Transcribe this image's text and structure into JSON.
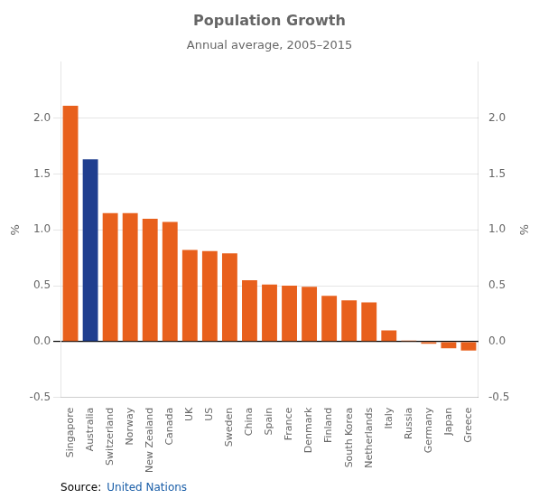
{
  "chart_data": {
    "type": "bar",
    "title": "Population Growth",
    "subtitle": "Annual average, 2005–2015",
    "categories": [
      "Singapore",
      "Australia",
      "Switzerland",
      "Norway",
      "New Zealand",
      "Canada",
      "UK",
      "US",
      "Sweden",
      "China",
      "Spain",
      "France",
      "Denmark",
      "Finland",
      "South Korea",
      "Netherlands",
      "Italy",
      "Russia",
      "Germany",
      "Japan",
      "Greece"
    ],
    "values": [
      2.11,
      1.63,
      1.15,
      1.15,
      1.1,
      1.07,
      0.82,
      0.81,
      0.79,
      0.55,
      0.51,
      0.5,
      0.49,
      0.41,
      0.37,
      0.35,
      0.1,
      0.01,
      -0.02,
      -0.06,
      -0.08
    ],
    "colors": [
      "#E8601C",
      "#1F3E8F",
      "#E8601C",
      "#E8601C",
      "#E8601C",
      "#E8601C",
      "#E8601C",
      "#E8601C",
      "#E8601C",
      "#E8601C",
      "#E8601C",
      "#E8601C",
      "#E8601C",
      "#E8601C",
      "#E8601C",
      "#E8601C",
      "#E8601C",
      "#E8601C",
      "#E8601C",
      "#E8601C",
      "#E8601C"
    ],
    "ylim": [
      -0.5,
      2.5
    ],
    "yticks": [
      {
        "value": -0.5,
        "label": "-0.5"
      },
      {
        "value": 0,
        "label": "0.0"
      },
      0.5,
      {
        "value": 1,
        "label": "1.0"
      },
      1.5,
      {
        "value": 2,
        "label": "2.0"
      }
    ],
    "y2lim": [
      -0.5,
      2.5
    ],
    "y2ticks": [
      {
        "value": -0.5,
        "label": "-0.5"
      },
      {
        "value": 0,
        "label": "0.0"
      },
      0.5,
      {
        "value": 1,
        "label": "1.0"
      },
      1.5,
      {
        "value": 2,
        "label": "2.0"
      }
    ],
    "ylabel": "%",
    "y2label": "%",
    "annotations": [
      {
        "text": "Source:",
        "color": "#000000"
      },
      {
        "text": "United Nations",
        "color": "#1A5EA8"
      }
    ],
    "grid": true
  }
}
